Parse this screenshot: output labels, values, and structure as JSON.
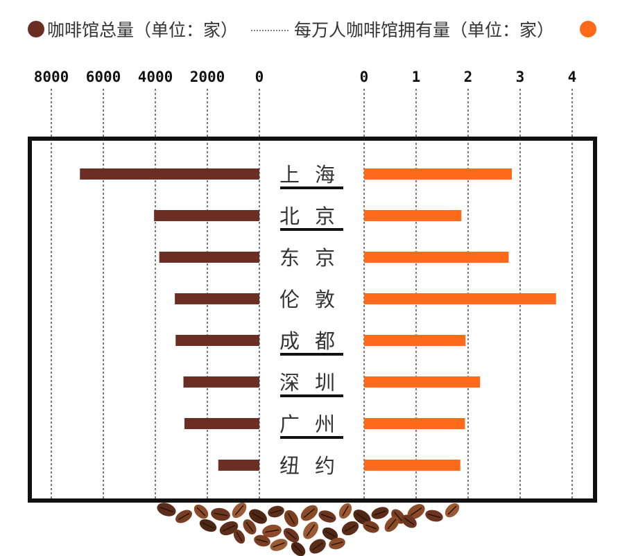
{
  "legend": {
    "left_label": "咖啡馆总量（单位：家）",
    "right_label": "每万人咖啡馆拥有量（单位：家）",
    "left_color": "#6b2e25",
    "right_color": "#ff6a1a"
  },
  "chart_data": {
    "type": "bar",
    "layout": "back-to-back horizontal bars",
    "categories": [
      "上海",
      "北京",
      "东京",
      "伦敦",
      "成都",
      "深圳",
      "广州",
      "纽约"
    ],
    "underlined": [
      true,
      true,
      false,
      false,
      true,
      true,
      true,
      false
    ],
    "series": [
      {
        "name": "咖啡馆总量（单位：家）",
        "color": "#6b2e25",
        "side": "left",
        "values": [
          6900,
          4050,
          3850,
          3250,
          3220,
          2920,
          2880,
          1580
        ],
        "ticks": [
          8000,
          6000,
          4000,
          2000,
          0
        ],
        "xlim": [
          0,
          8000
        ]
      },
      {
        "name": "每万人咖啡馆拥有量（单位：家）",
        "color": "#ff6a1a",
        "side": "right",
        "values": [
          2.84,
          1.87,
          2.78,
          3.69,
          1.95,
          2.23,
          1.94,
          1.85
        ],
        "ticks": [
          0,
          1,
          2,
          3,
          4
        ],
        "xlim": [
          0,
          4
        ]
      }
    ],
    "grid": "vertical dotted lines at each tick"
  }
}
